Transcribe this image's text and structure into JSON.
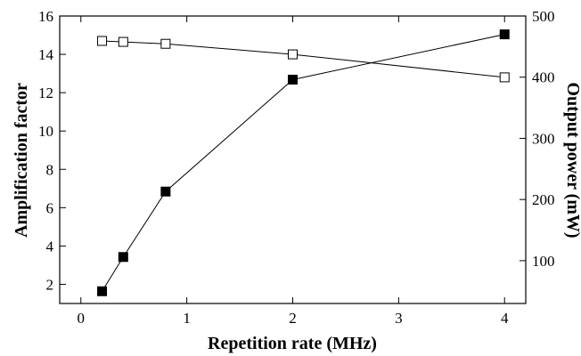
{
  "chart_data": {
    "type": "line",
    "xlabel": "Repetition rate (MHz)",
    "ylabel_left": "Amplification factor",
    "ylabel_right": "Output power (mW)",
    "xlim": [
      -0.2,
      4.2
    ],
    "ylim_left": [
      1.0,
      16.0
    ],
    "ylim_right": [
      30,
      500
    ],
    "x_ticks": [
      0,
      1,
      2,
      3,
      4
    ],
    "y_left_ticks": [
      2,
      4,
      6,
      8,
      10,
      12,
      14,
      16
    ],
    "y_right_ticks": [
      100,
      200,
      300,
      400,
      500
    ],
    "grid": false,
    "series": [
      {
        "axis": "left",
        "marker": "open-square",
        "x": [
          0.2,
          0.4,
          0.8,
          2.0,
          4.0
        ],
        "values": [
          14.7,
          14.65,
          14.55,
          14.0,
          12.8
        ]
      },
      {
        "axis": "right",
        "marker": "filled-square",
        "x": [
          0.2,
          0.4,
          0.8,
          2.0,
          4.0
        ],
        "values": [
          50,
          106,
          213,
          396,
          470
        ]
      }
    ]
  }
}
